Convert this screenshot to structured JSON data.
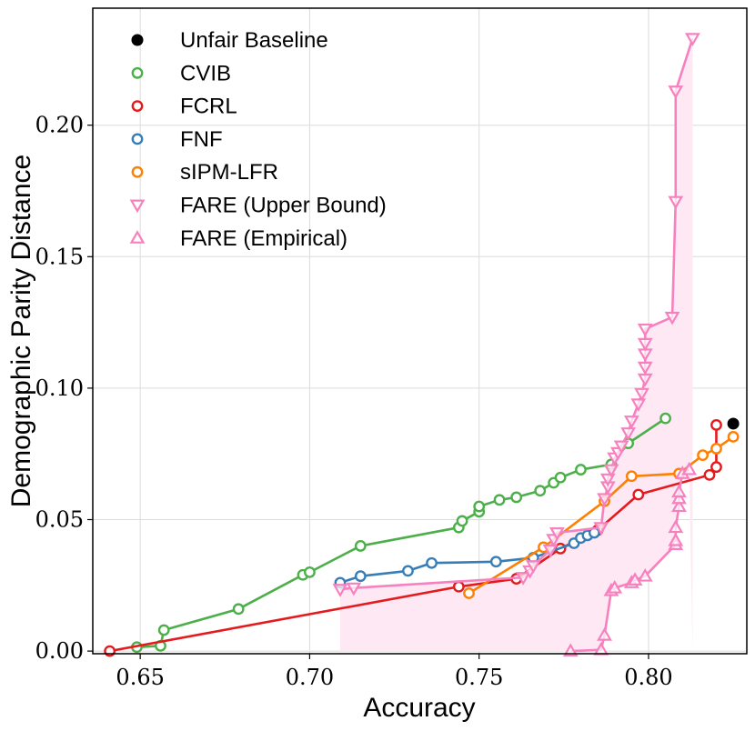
{
  "chart_data": {
    "type": "scatter",
    "xlabel": "Accuracy",
    "ylabel": "Demographic Parity Distance",
    "xlim": [
      0.636,
      0.829
    ],
    "ylim": [
      -0.001,
      0.2445
    ],
    "xticks": [
      0.65,
      0.7,
      0.75,
      0.8
    ],
    "xtick_labels": [
      "0.65",
      "0.70",
      "0.75",
      "0.80"
    ],
    "yticks": [
      0.0,
      0.05,
      0.1,
      0.15,
      0.2
    ],
    "ytick_labels": [
      "0.00",
      "0.05",
      "0.10",
      "0.15",
      "0.20"
    ],
    "grid": true,
    "legend_position": "top-left",
    "series": [
      {
        "name": "Unfair Baseline",
        "color": "#000000",
        "marker": "filled-circle",
        "line": false,
        "points": [
          [
            0.825,
            0.0865
          ]
        ]
      },
      {
        "name": "CVIB",
        "color": "#4daf4a",
        "marker": "circle",
        "line": true,
        "points": [
          [
            0.649,
            0.0015
          ],
          [
            0.656,
            0.002
          ],
          [
            0.657,
            0.008
          ],
          [
            0.679,
            0.016
          ],
          [
            0.698,
            0.029
          ],
          [
            0.7,
            0.03
          ],
          [
            0.715,
            0.04
          ],
          [
            0.744,
            0.047
          ],
          [
            0.745,
            0.0495
          ],
          [
            0.75,
            0.053
          ],
          [
            0.75,
            0.055
          ],
          [
            0.756,
            0.0575
          ],
          [
            0.761,
            0.0585
          ],
          [
            0.768,
            0.061
          ],
          [
            0.772,
            0.064
          ],
          [
            0.774,
            0.066
          ],
          [
            0.78,
            0.069
          ],
          [
            0.789,
            0.071
          ],
          [
            0.794,
            0.079
          ],
          [
            0.805,
            0.0885
          ]
        ]
      },
      {
        "name": "FCRL",
        "color": "#e41a1c",
        "marker": "circle",
        "line": true,
        "points": [
          [
            0.641,
            0.0
          ],
          [
            0.744,
            0.0245
          ],
          [
            0.761,
            0.0275
          ],
          [
            0.774,
            0.039
          ],
          [
            0.785,
            0.046
          ],
          [
            0.797,
            0.0595
          ],
          [
            0.818,
            0.067
          ],
          [
            0.82,
            0.07
          ],
          [
            0.82,
            0.086
          ]
        ]
      },
      {
        "name": "FNF",
        "color": "#377eb8",
        "marker": "circle",
        "line": true,
        "points": [
          [
            0.709,
            0.026
          ],
          [
            0.715,
            0.0285
          ],
          [
            0.729,
            0.0305
          ],
          [
            0.736,
            0.0335
          ],
          [
            0.755,
            0.034
          ],
          [
            0.766,
            0.0355
          ],
          [
            0.778,
            0.041
          ],
          [
            0.78,
            0.043
          ],
          [
            0.782,
            0.044
          ],
          [
            0.784,
            0.045
          ]
        ]
      },
      {
        "name": "sIPM-LFR",
        "color": "#ff7f00",
        "marker": "circle",
        "line": true,
        "points": [
          [
            0.747,
            0.022
          ],
          [
            0.769,
            0.0395
          ],
          [
            0.787,
            0.057
          ],
          [
            0.795,
            0.0665
          ],
          [
            0.809,
            0.0675
          ],
          [
            0.816,
            0.0745
          ],
          [
            0.82,
            0.077
          ],
          [
            0.825,
            0.0815
          ]
        ]
      },
      {
        "name": "FARE (Upper Bound)",
        "color": "#f781bf",
        "marker": "triangle-down",
        "line": true,
        "points": [
          [
            0.709,
            0.0235
          ],
          [
            0.713,
            0.024
          ],
          [
            0.763,
            0.028
          ],
          [
            0.765,
            0.0305
          ],
          [
            0.766,
            0.0325
          ],
          [
            0.771,
            0.0385
          ],
          [
            0.772,
            0.0425
          ],
          [
            0.773,
            0.045
          ],
          [
            0.786,
            0.047
          ],
          [
            0.787,
            0.058
          ],
          [
            0.788,
            0.0625
          ],
          [
            0.788,
            0.0655
          ],
          [
            0.789,
            0.069
          ],
          [
            0.79,
            0.0735
          ],
          [
            0.791,
            0.0755
          ],
          [
            0.792,
            0.078
          ],
          [
            0.794,
            0.083
          ],
          [
            0.795,
            0.0875
          ],
          [
            0.797,
            0.094
          ],
          [
            0.798,
            0.098
          ],
          [
            0.799,
            0.1035
          ],
          [
            0.799,
            0.108
          ],
          [
            0.799,
            0.113
          ],
          [
            0.799,
            0.117
          ],
          [
            0.799,
            0.1225
          ],
          [
            0.807,
            0.127
          ],
          [
            0.808,
            0.171
          ],
          [
            0.808,
            0.213
          ],
          [
            0.813,
            0.233
          ]
        ]
      },
      {
        "name": "FARE (Empirical)",
        "color": "#f781bf",
        "marker": "triangle-up",
        "line": true,
        "points": [
          [
            0.777,
            0.0
          ],
          [
            0.786,
            0.0005
          ],
          [
            0.787,
            0.006
          ],
          [
            0.789,
            0.023
          ],
          [
            0.79,
            0.024
          ],
          [
            0.795,
            0.026
          ],
          [
            0.796,
            0.027
          ],
          [
            0.799,
            0.0285
          ],
          [
            0.808,
            0.0405
          ],
          [
            0.808,
            0.042
          ],
          [
            0.808,
            0.047
          ],
          [
            0.809,
            0.055
          ],
          [
            0.809,
            0.058
          ],
          [
            0.809,
            0.0605
          ],
          [
            0.81,
            0.0675
          ],
          [
            0.812,
            0.069
          ]
        ]
      }
    ],
    "shaded_region": {
      "label": "FARE upper-bound region",
      "color": "#fde8f3",
      "x_start": 0.709,
      "x_end": 0.813
    }
  }
}
